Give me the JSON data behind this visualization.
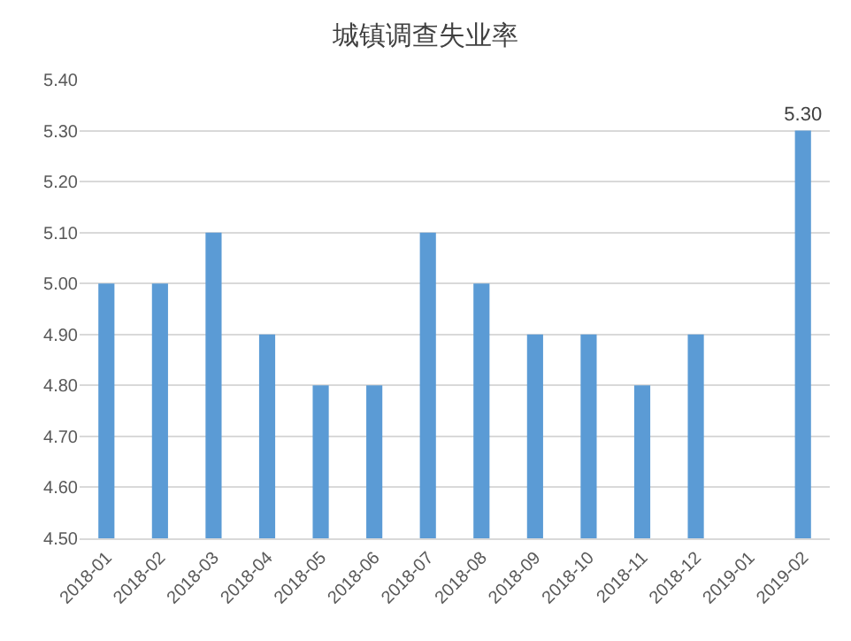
{
  "chart_data": {
    "type": "bar",
    "title": "城镇调查失业率",
    "categories": [
      "2018-01",
      "2018-02",
      "2018-03",
      "2018-04",
      "2018-05",
      "2018-06",
      "2018-07",
      "2018-08",
      "2018-09",
      "2018-10",
      "2018-11",
      "2018-12",
      "2019-01",
      "2019-02"
    ],
    "values": [
      5.0,
      5.0,
      5.1,
      4.9,
      4.8,
      4.8,
      5.1,
      5.0,
      4.9,
      4.9,
      4.8,
      4.9,
      null,
      5.3
    ],
    "value_labels": [
      null,
      null,
      null,
      null,
      null,
      null,
      null,
      null,
      null,
      null,
      null,
      null,
      null,
      "5.30"
    ],
    "color": "#5b9bd5",
    "ylim": [
      4.5,
      5.4
    ],
    "yticks": [
      {
        "value": 4.5,
        "label": "4.50"
      },
      {
        "value": 4.6,
        "label": "4.60"
      },
      {
        "value": 4.7,
        "label": "4.70"
      },
      {
        "value": 4.8,
        "label": "4.80"
      },
      {
        "value": 4.9,
        "label": "4.90"
      },
      {
        "value": 5.0,
        "label": "5.00"
      },
      {
        "value": 5.1,
        "label": "5.10"
      },
      {
        "value": 5.2,
        "label": "5.20"
      },
      {
        "value": 5.3,
        "label": "5.30"
      },
      {
        "value": 5.4,
        "label": "5.40"
      }
    ],
    "grid": "y"
  }
}
